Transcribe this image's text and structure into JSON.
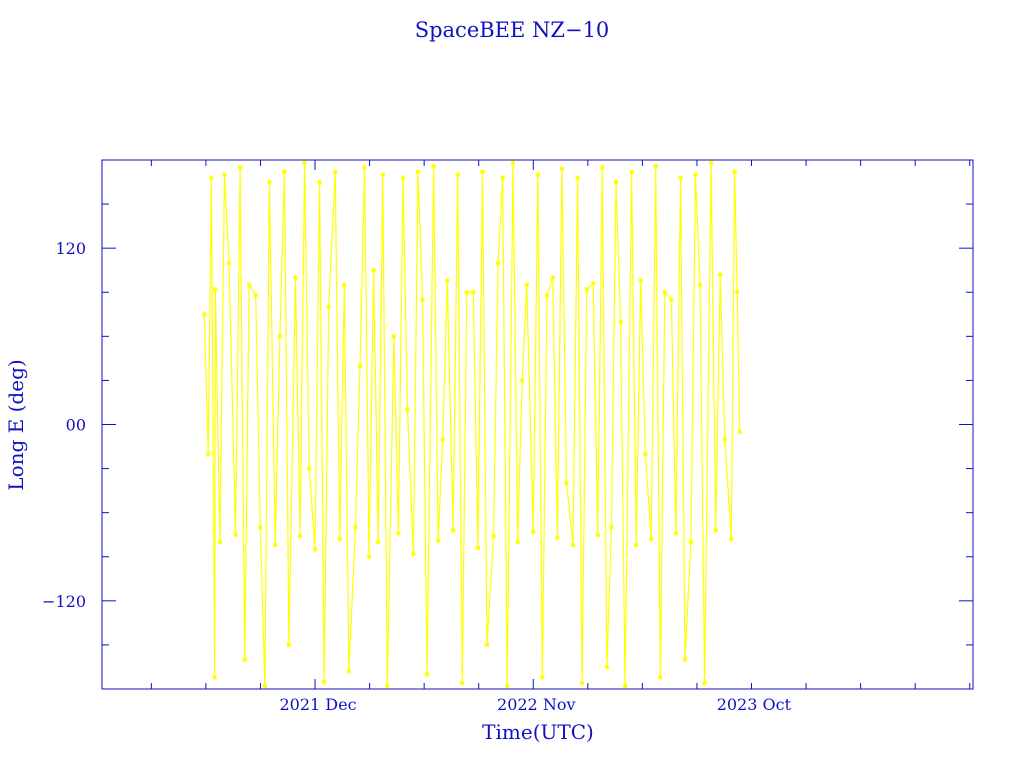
{
  "chart_data": {
    "type": "line",
    "title": "SpaceBEE NZ−10",
    "xlabel": "Time(UTC)",
    "ylabel": "Long E (deg)",
    "xlim": [
      "2021-01-08",
      "2024-09-06"
    ],
    "ylim": [
      -180,
      180
    ],
    "x_ticks": [
      {
        "date": "2021-12-01",
        "label": "2021 Dec"
      },
      {
        "date": "2022-11-01",
        "label": "2022 Nov"
      },
      {
        "date": "2023-10-01",
        "label": "2023 Oct"
      }
    ],
    "y_ticks": [
      {
        "value": 120,
        "label": "120"
      },
      {
        "value": 0,
        "label": "00"
      },
      {
        "value": -120,
        "label": "−120"
      }
    ],
    "grid": false,
    "colors": {
      "axis": "#1010c0",
      "series": "#ffff00",
      "background": "#ffffff"
    },
    "series": [
      {
        "points": [
          [
            "2021-06-14",
            75
          ],
          [
            "2021-06-20",
            -20
          ],
          [
            "2021-06-25",
            168
          ],
          [
            "2021-06-30",
            -172
          ],
          [
            "2021-07-01",
            92
          ],
          [
            "2021-07-08",
            -80
          ],
          [
            "2021-07-15",
            170
          ],
          [
            "2021-07-22",
            110
          ],
          [
            "2021-08-01",
            -75
          ],
          [
            "2021-08-08",
            175
          ],
          [
            "2021-08-15",
            -160
          ],
          [
            "2021-08-22",
            95
          ],
          [
            "2021-09-01",
            88
          ],
          [
            "2021-09-08",
            -70
          ],
          [
            "2021-09-15",
            -178
          ],
          [
            "2021-09-22",
            165
          ],
          [
            "2021-10-01",
            -82
          ],
          [
            "2021-10-08",
            60
          ],
          [
            "2021-10-15",
            172
          ],
          [
            "2021-10-22",
            -150
          ],
          [
            "2021-11-01",
            100
          ],
          [
            "2021-11-08",
            -76
          ],
          [
            "2021-11-15",
            178
          ],
          [
            "2021-11-22",
            -30
          ],
          [
            "2021-12-01",
            -85
          ],
          [
            "2021-12-08",
            165
          ],
          [
            "2021-12-15",
            -175
          ],
          [
            "2021-12-22",
            80
          ],
          [
            "2022-01-01",
            172
          ],
          [
            "2022-01-08",
            -78
          ],
          [
            "2022-01-15",
            95
          ],
          [
            "2022-01-22",
            -168
          ],
          [
            "2022-02-01",
            -70
          ],
          [
            "2022-02-08",
            40
          ],
          [
            "2022-02-15",
            175
          ],
          [
            "2022-02-22",
            -90
          ],
          [
            "2022-03-01",
            105
          ],
          [
            "2022-03-08",
            -80
          ],
          [
            "2022-03-15",
            170
          ],
          [
            "2022-03-22",
            -178
          ],
          [
            "2022-04-01",
            60
          ],
          [
            "2022-04-08",
            -74
          ],
          [
            "2022-04-15",
            168
          ],
          [
            "2022-04-22",
            10
          ],
          [
            "2022-05-01",
            -88
          ],
          [
            "2022-05-08",
            172
          ],
          [
            "2022-05-15",
            85
          ],
          [
            "2022-05-22",
            -170
          ],
          [
            "2022-06-01",
            176
          ],
          [
            "2022-06-08",
            -79
          ],
          [
            "2022-06-15",
            -10
          ],
          [
            "2022-06-22",
            98
          ],
          [
            "2022-07-01",
            -72
          ],
          [
            "2022-07-08",
            170
          ],
          [
            "2022-07-15",
            -176
          ],
          [
            "2022-07-22",
            90
          ],
          [
            "2022-08-01",
            90
          ],
          [
            "2022-08-08",
            -84
          ],
          [
            "2022-08-15",
            172
          ],
          [
            "2022-08-22",
            -150
          ],
          [
            "2022-09-01",
            -76
          ],
          [
            "2022-09-08",
            110
          ],
          [
            "2022-09-15",
            168
          ],
          [
            "2022-09-22",
            -178
          ],
          [
            "2022-10-01",
            178
          ],
          [
            "2022-10-08",
            -80
          ],
          [
            "2022-10-15",
            30
          ],
          [
            "2022-10-22",
            95
          ],
          [
            "2022-11-01",
            -73
          ],
          [
            "2022-11-08",
            170
          ],
          [
            "2022-11-15",
            -172
          ],
          [
            "2022-11-22",
            88
          ],
          [
            "2022-12-01",
            100
          ],
          [
            "2022-12-08",
            -77
          ],
          [
            "2022-12-15",
            174
          ],
          [
            "2022-12-22",
            -40
          ],
          [
            "2023-01-01",
            -82
          ],
          [
            "2023-01-08",
            168
          ],
          [
            "2023-01-15",
            -176
          ],
          [
            "2023-01-22",
            92
          ],
          [
            "2023-02-01",
            96
          ],
          [
            "2023-02-08",
            -75
          ],
          [
            "2023-02-15",
            175
          ],
          [
            "2023-02-22",
            -165
          ],
          [
            "2023-03-01",
            -70
          ],
          [
            "2023-03-08",
            165
          ],
          [
            "2023-03-15",
            70
          ],
          [
            "2023-03-22",
            -178
          ],
          [
            "2023-04-01",
            172
          ],
          [
            "2023-04-08",
            -82
          ],
          [
            "2023-04-15",
            98
          ],
          [
            "2023-04-22",
            -20
          ],
          [
            "2023-05-01",
            -78
          ],
          [
            "2023-05-08",
            176
          ],
          [
            "2023-05-15",
            -172
          ],
          [
            "2023-05-22",
            90
          ],
          [
            "2023-06-01",
            85
          ],
          [
            "2023-06-08",
            -74
          ],
          [
            "2023-06-15",
            168
          ],
          [
            "2023-06-22",
            -160
          ],
          [
            "2023-07-01",
            -80
          ],
          [
            "2023-07-08",
            170
          ],
          [
            "2023-07-15",
            95
          ],
          [
            "2023-07-22",
            -176
          ],
          [
            "2023-08-01",
            178
          ],
          [
            "2023-08-08",
            -72
          ],
          [
            "2023-08-15",
            102
          ],
          [
            "2023-08-22",
            -10
          ],
          [
            "2023-09-01",
            -78
          ],
          [
            "2023-09-06",
            172
          ],
          [
            "2023-09-10",
            90
          ],
          [
            "2023-09-14",
            -5
          ]
        ]
      }
    ]
  }
}
